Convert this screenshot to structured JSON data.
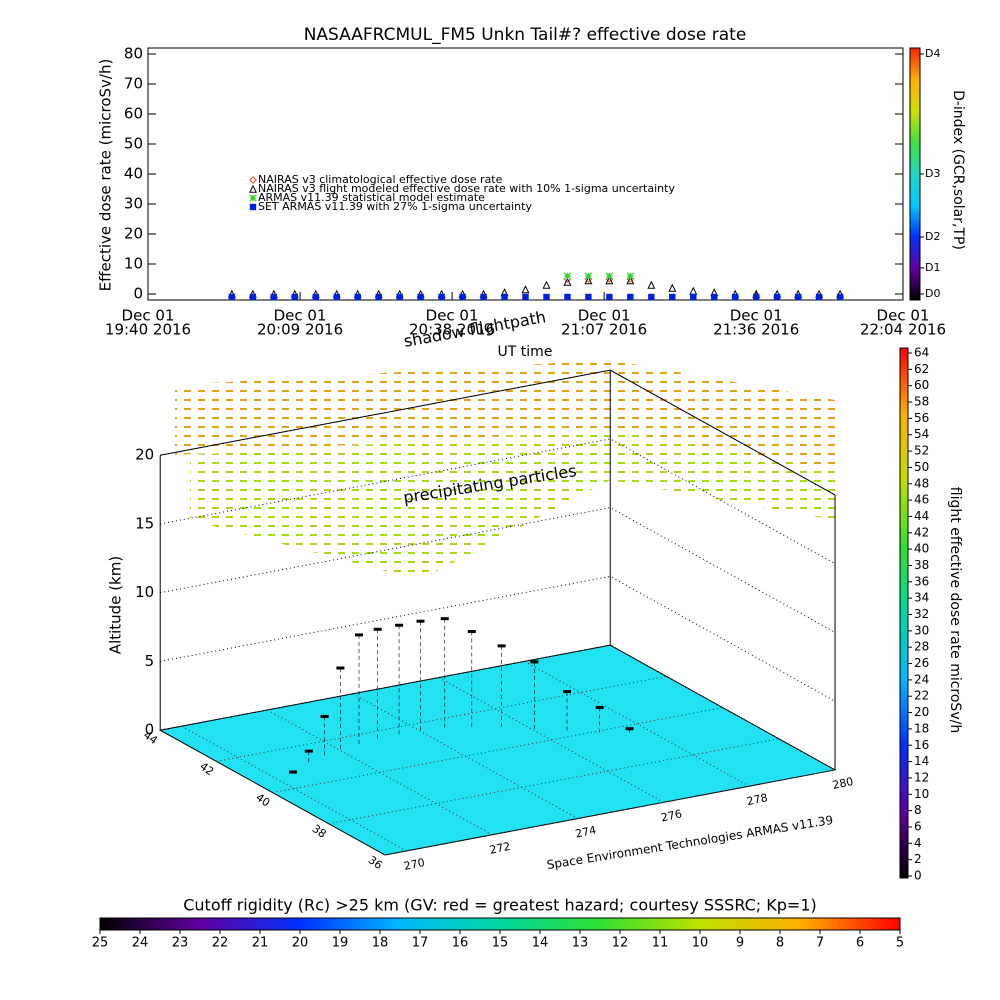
{
  "chart_data": [
    {
      "type": "line",
      "title": "NASAAFRCMUL_FM5 Unkn Tail#? effective dose rate",
      "y_label": "Effective dose rate (microSv/h)",
      "x_label": "UT time",
      "xlim": [
        "2016-12-01T19:40",
        "2016-12-01T22:04"
      ],
      "xticks": [
        {
          "value": "2016-12-01T19:40",
          "label": [
            "Dec 01",
            "19:40 2016"
          ]
        },
        {
          "value": "2016-12-01T20:09",
          "label": [
            "Dec 01",
            "20:09 2016"
          ]
        },
        {
          "value": "2016-12-01T20:38",
          "label": [
            "Dec 01",
            "20:38 2016"
          ]
        },
        {
          "value": "2016-12-01T21:07",
          "label": [
            "Dec 01",
            "21:07 2016"
          ]
        },
        {
          "value": "2016-12-01T21:36",
          "label": [
            "Dec 01",
            "21:36 2016"
          ]
        },
        {
          "value": "2016-12-01T22:04",
          "label": [
            "Dec 01",
            "22:04 2016"
          ]
        }
      ],
      "ylim": [
        -2,
        82
      ],
      "yticks": [
        0,
        10,
        20,
        30,
        40,
        50,
        60,
        70,
        80
      ],
      "y2_label": "D-index (GCR,solar,TP)",
      "y2lim": [
        -2,
        82
      ],
      "y2ticks": [
        {
          "value": 0,
          "label": "D0"
        },
        {
          "value": 8.7,
          "label": "D1"
        },
        {
          "value": 19,
          "label": "D2"
        },
        {
          "value": 40,
          "label": "D3"
        },
        {
          "value": 80,
          "label": "D4"
        }
      ],
      "y2_colors": [
        "#000000",
        "#6000a0",
        "#0030ff",
        "#00c8ff",
        "#20d8c0",
        "#40e040",
        "#d0e000",
        "#ffb000",
        "#ff2000"
      ],
      "x": [
        "2016-12-01T19:56",
        "2016-12-01T20:00",
        "2016-12-01T20:04",
        "2016-12-01T20:08",
        "2016-12-01T20:12",
        "2016-12-01T20:16",
        "2016-12-01T20:20",
        "2016-12-01T20:24",
        "2016-12-01T20:28",
        "2016-12-01T20:32",
        "2016-12-01T20:36",
        "2016-12-01T20:40",
        "2016-12-01T20:44",
        "2016-12-01T20:48",
        "2016-12-01T20:52",
        "2016-12-01T20:56",
        "2016-12-01T21:00",
        "2016-12-01T21:04",
        "2016-12-01T21:08",
        "2016-12-01T21:12",
        "2016-12-01T21:16",
        "2016-12-01T21:20",
        "2016-12-01T21:24",
        "2016-12-01T21:28",
        "2016-12-01T21:32",
        "2016-12-01T21:36",
        "2016-12-01T21:40",
        "2016-12-01T21:44",
        "2016-12-01T21:48",
        "2016-12-01T21:52"
      ],
      "series": [
        {
          "name": "NAIRAS v3 climatological effective dose rate",
          "color": "#ff4020",
          "marker": "diamond",
          "values": [
            null,
            null,
            null,
            null,
            null,
            null,
            null,
            null,
            null,
            null,
            null,
            null,
            null,
            null,
            null,
            null,
            5,
            5,
            5,
            5,
            null,
            null,
            null,
            null,
            null,
            null,
            null,
            null,
            null,
            null
          ]
        },
        {
          "name": "NAIRAS v3 flight modeled effective dose rate with 10% 1-sigma uncertainty",
          "color": "#000000",
          "marker": "triangle",
          "values": [
            0,
            0,
            0,
            0,
            0,
            0,
            0,
            0,
            0,
            0,
            0,
            0,
            0,
            0.5,
            1.5,
            3,
            4,
            4.5,
            4.5,
            4.5,
            3,
            2,
            1,
            0.5,
            0,
            0,
            0,
            0,
            0,
            0
          ]
        },
        {
          "name": "ARMAS v11.39 statistical model estimate",
          "color": "#30d030",
          "marker": "asterisk",
          "values": [
            null,
            null,
            null,
            null,
            null,
            null,
            null,
            null,
            null,
            null,
            null,
            null,
            null,
            null,
            null,
            null,
            6,
            6,
            6,
            6,
            null,
            null,
            null,
            null,
            null,
            null,
            null,
            null,
            null,
            null
          ]
        },
        {
          "name": "SET ARMAS v11.39 with 27% 1-sigma uncertainty",
          "color": "#0020e0",
          "marker": "square",
          "values": [
            -1,
            -1,
            -1,
            -1,
            -1,
            -1,
            -1,
            -1,
            -1,
            -1,
            -1,
            -1,
            -1,
            -1,
            -1,
            -1,
            -1,
            -1,
            -1,
            -1,
            -1,
            -1,
            -1,
            -1,
            -1,
            -1,
            -1,
            -1,
            -1,
            -1
          ]
        }
      ]
    },
    {
      "type": "scatter3d",
      "z_label": "Altitude (km)",
      "annotations": [
        "shadow flightpath",
        "precipitating particles"
      ],
      "credit": "Space Environment Technologies ARMAS v11.39",
      "xlim": [
        269.5,
        280
      ],
      "xticks": [
        270,
        272,
        274,
        276,
        278,
        280
      ],
      "ylim": [
        36,
        44
      ],
      "yticks": [
        36,
        38,
        40,
        42,
        44
      ],
      "zlim": [
        0,
        20
      ],
      "zticks": [
        0,
        5,
        10,
        15,
        20
      ],
      "floor_color": "#22e2f2",
      "color": "#000000",
      "x": [
        270.5,
        271,
        271.5,
        272,
        272.5,
        273,
        273.5,
        274,
        274.5,
        275,
        275.5,
        276,
        276.5,
        277,
        277.5
      ],
      "y": [
        40.8,
        41,
        41.2,
        41.4,
        41.5,
        41.6,
        41.6,
        41.6,
        41.5,
        41.3,
        41,
        40.6,
        40.2,
        39.8,
        39.5
      ],
      "z": [
        0,
        1,
        3,
        6,
        8,
        8,
        8,
        8,
        8,
        7,
        6,
        5,
        3,
        2,
        0.5
      ]
    },
    {
      "type": "colorbar",
      "orientation": "vertical",
      "label": "flight effective dose rate microSv/h",
      "lim": [
        0,
        64
      ],
      "ticks": [
        0,
        2,
        4,
        6,
        8,
        10,
        12,
        14,
        16,
        18,
        20,
        22,
        24,
        26,
        28,
        30,
        32,
        34,
        36,
        38,
        40,
        42,
        44,
        46,
        48,
        50,
        52,
        54,
        56,
        58,
        60,
        62,
        64
      ],
      "colors": [
        "#000000",
        "#6000a0",
        "#0030ff",
        "#00b8ff",
        "#00d8a0",
        "#30e030",
        "#c0e000",
        "#ffb000",
        "#ff0000"
      ]
    },
    {
      "type": "colorbar",
      "orientation": "horizontal",
      "label": "Cutoff rigidity (Rc) >25 km (GV: red = greatest hazard; courtesy SSSRC; Kp=1)",
      "lim": [
        25,
        5
      ],
      "ticks": [
        25,
        24,
        23,
        22,
        21,
        20,
        19,
        18,
        17,
        16,
        15,
        14,
        13,
        12,
        11,
        10,
        9,
        8,
        7,
        6,
        5
      ],
      "colors": [
        "#000000",
        "#6000a0",
        "#0030ff",
        "#00b8ff",
        "#00d8a0",
        "#30e030",
        "#c0e000",
        "#ffb000",
        "#ff0000"
      ]
    }
  ]
}
